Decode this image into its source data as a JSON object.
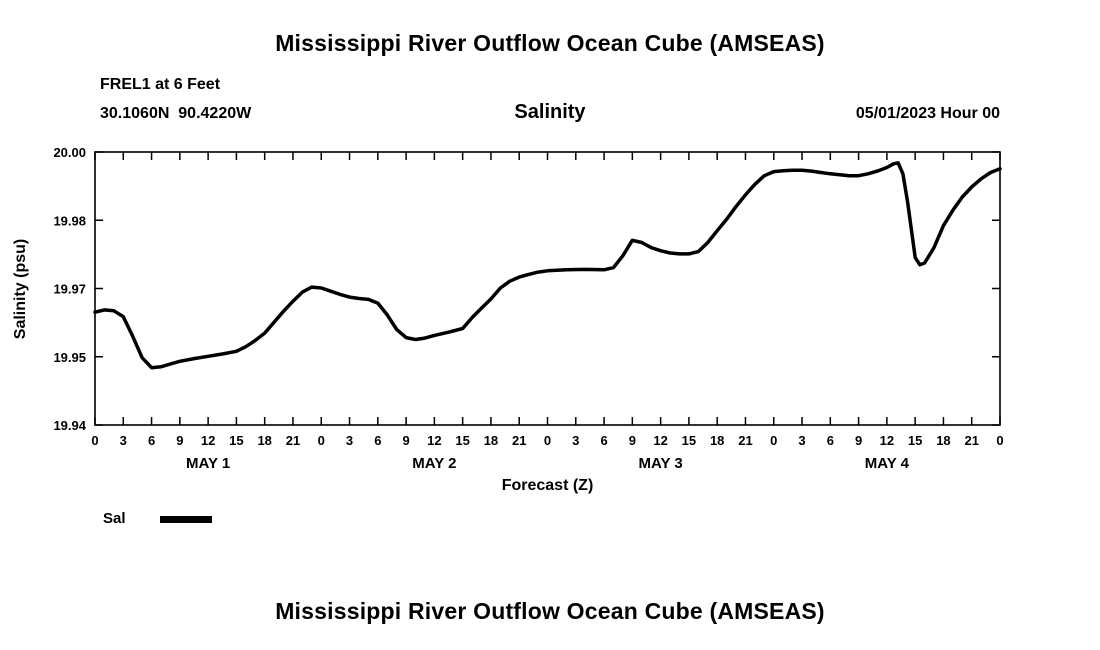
{
  "titles": {
    "main": "Mississippi River Outflow Ocean Cube (AMSEAS)",
    "bottom": "Mississippi River Outflow Ocean Cube (AMSEAS)"
  },
  "header": {
    "station": "FREL1 at 6 Feet",
    "coords": "30.1060N  90.4220W",
    "parameter": "Salinity",
    "datetime": "05/01/2023 Hour 00"
  },
  "legend": {
    "label": "Sal"
  },
  "chart_data": {
    "type": "line",
    "title": "Salinity",
    "xlabel": "Forecast (Z)",
    "ylabel": "Salinity (psu)",
    "x_unit": "forecast hours",
    "xlim": [
      0,
      96
    ],
    "ylim": [
      19.94,
      20.0
    ],
    "grid": false,
    "line_color": "#000000",
    "y_ticks": [
      {
        "value": 19.94,
        "label": "19.94"
      },
      {
        "value": 19.955,
        "label": "19.95"
      },
      {
        "value": 19.97,
        "label": "19.97"
      },
      {
        "value": 19.985,
        "label": "19.98"
      },
      {
        "value": 20.0,
        "label": "20.00"
      }
    ],
    "x_tick_step": 3,
    "x_tick_labels": [
      "0",
      "3",
      "6",
      "9",
      "12",
      "15",
      "18",
      "21",
      "0",
      "3",
      "6",
      "9",
      "12",
      "15",
      "18",
      "21",
      "0",
      "3",
      "6",
      "9",
      "12",
      "15",
      "18",
      "21",
      "0",
      "3",
      "6",
      "9",
      "12",
      "15",
      "18",
      "21",
      "0"
    ],
    "day_labels": [
      {
        "hour": 12,
        "label": "MAY 1"
      },
      {
        "hour": 36,
        "label": "MAY 2"
      },
      {
        "hour": 60,
        "label": "MAY 3"
      },
      {
        "hour": 84,
        "label": "MAY 4"
      }
    ],
    "series": [
      {
        "name": "Sal",
        "color": "#000000",
        "points": [
          [
            0,
            19.9648
          ],
          [
            1,
            19.9653
          ],
          [
            2,
            19.9651
          ],
          [
            3,
            19.9638
          ],
          [
            4,
            19.9595
          ],
          [
            5,
            19.9548
          ],
          [
            6,
            19.9526
          ],
          [
            7,
            19.9528
          ],
          [
            8,
            19.9534
          ],
          [
            9,
            19.954
          ],
          [
            10.5,
            19.9546
          ],
          [
            12,
            19.9551
          ],
          [
            13.5,
            19.9556
          ],
          [
            15,
            19.9562
          ],
          [
            16,
            19.9572
          ],
          [
            17,
            19.9586
          ],
          [
            18,
            19.9602
          ],
          [
            19,
            19.9626
          ],
          [
            20,
            19.965
          ],
          [
            21,
            19.9672
          ],
          [
            22,
            19.9692
          ],
          [
            23,
            19.9703
          ],
          [
            24,
            19.9701
          ],
          [
            25,
            19.9694
          ],
          [
            26,
            19.9687
          ],
          [
            27,
            19.9681
          ],
          [
            28,
            19.9678
          ],
          [
            29,
            19.9676
          ],
          [
            30,
            19.9668
          ],
          [
            31,
            19.9642
          ],
          [
            32,
            19.961
          ],
          [
            33,
            19.9592
          ],
          [
            34,
            19.9588
          ],
          [
            35,
            19.9591
          ],
          [
            36,
            19.9597
          ],
          [
            37.5,
            19.9604
          ],
          [
            39,
            19.9612
          ],
          [
            40,
            19.9636
          ],
          [
            41,
            19.9657
          ],
          [
            42,
            19.9677
          ],
          [
            43,
            19.9701
          ],
          [
            44,
            19.9716
          ],
          [
            45,
            19.9725
          ],
          [
            46,
            19.9731
          ],
          [
            47,
            19.9736
          ],
          [
            48,
            19.9739
          ],
          [
            50,
            19.9741
          ],
          [
            52,
            19.9742
          ],
          [
            54,
            19.9741
          ],
          [
            55,
            19.9746
          ],
          [
            56,
            19.9772
          ],
          [
            57,
            19.9806
          ],
          [
            58,
            19.9801
          ],
          [
            59,
            19.979
          ],
          [
            60,
            19.9783
          ],
          [
            61,
            19.9778
          ],
          [
            62,
            19.9776
          ],
          [
            63,
            19.9776
          ],
          [
            64,
            19.9781
          ],
          [
            65,
            19.9801
          ],
          [
            66,
            19.9827
          ],
          [
            67,
            19.9852
          ],
          [
            68,
            19.988
          ],
          [
            69,
            19.9906
          ],
          [
            70,
            19.9929
          ],
          [
            71,
            19.9948
          ],
          [
            72,
            19.9957
          ],
          [
            73,
            19.9959
          ],
          [
            74,
            19.996
          ],
          [
            75,
            19.996
          ],
          [
            76,
            19.9958
          ],
          [
            77,
            19.9955
          ],
          [
            78,
            19.9952
          ],
          [
            79,
            19.995
          ],
          [
            80,
            19.9948
          ],
          [
            81,
            19.9948
          ],
          [
            82,
            19.9952
          ],
          [
            83,
            19.9958
          ],
          [
            84,
            19.9966
          ],
          [
            84.7,
            19.9974
          ],
          [
            85.2,
            19.9976
          ],
          [
            85.7,
            19.9952
          ],
          [
            86.2,
            19.989
          ],
          [
            86.7,
            19.9815
          ],
          [
            87,
            19.9768
          ],
          [
            87.5,
            19.9752
          ],
          [
            88,
            19.9756
          ],
          [
            89,
            19.979
          ],
          [
            90,
            19.9838
          ],
          [
            91,
            19.9872
          ],
          [
            92,
            19.9901
          ],
          [
            93,
            19.9923
          ],
          [
            94,
            19.9941
          ],
          [
            95,
            19.9955
          ],
          [
            96,
            19.9963
          ]
        ]
      }
    ]
  }
}
